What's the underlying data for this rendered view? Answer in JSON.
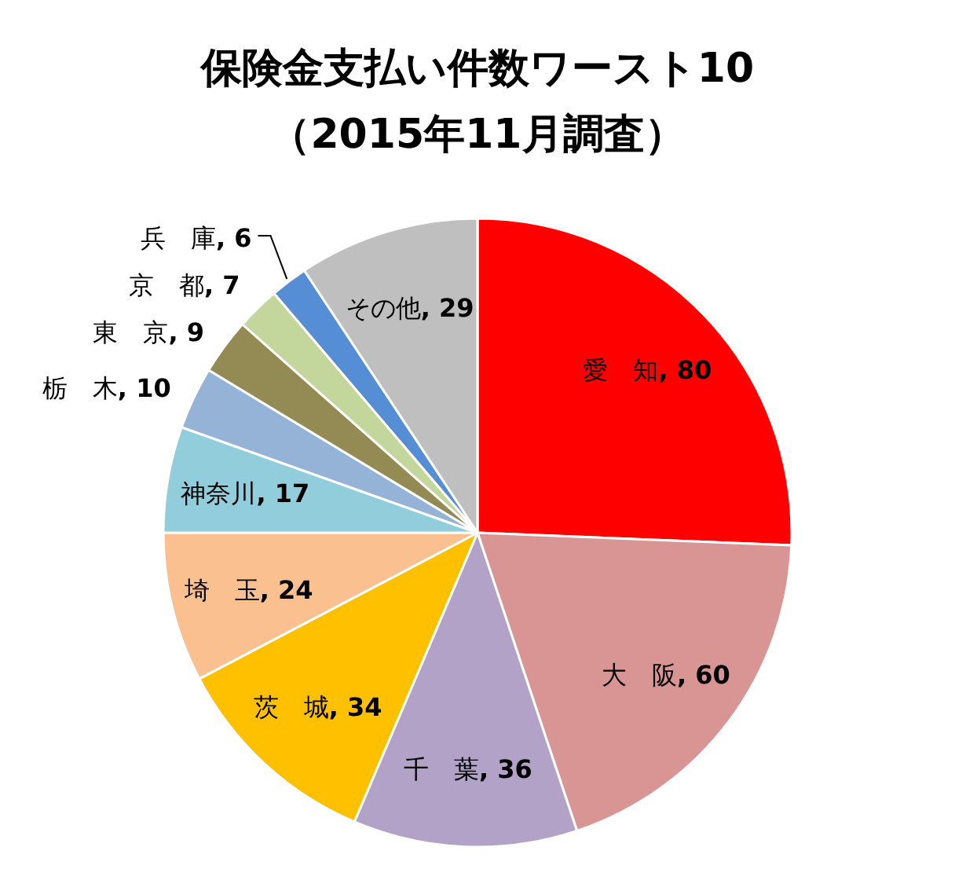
{
  "chart_data": {
    "type": "pie",
    "title": "保険金支払い件数ワースト10",
    "subtitle": "（2015年11月調査）",
    "categories": [
      "愛　知",
      "大　阪",
      "千　葉",
      "茨　城",
      "埼　玉",
      "神奈川",
      "栃　木",
      "東　京",
      "京　都",
      "兵　庫",
      "その他"
    ],
    "values": [
      80,
      60,
      36,
      34,
      24,
      17,
      10,
      9,
      7,
      6,
      29
    ],
    "value_labels": [
      ", 80",
      ", 60",
      ", 36",
      ", 34",
      ", 24",
      ", 17",
      ", 10",
      ", 9",
      ", 7",
      ", 6",
      ", 29"
    ],
    "colors": [
      "#ff0000",
      "#d99594",
      "#b2a2c7",
      "#ffc000",
      "#fac090",
      "#92cddc",
      "#95b3d7",
      "#948a54",
      "#c3d69b",
      "#558ed5",
      "#bfbfbf"
    ]
  }
}
